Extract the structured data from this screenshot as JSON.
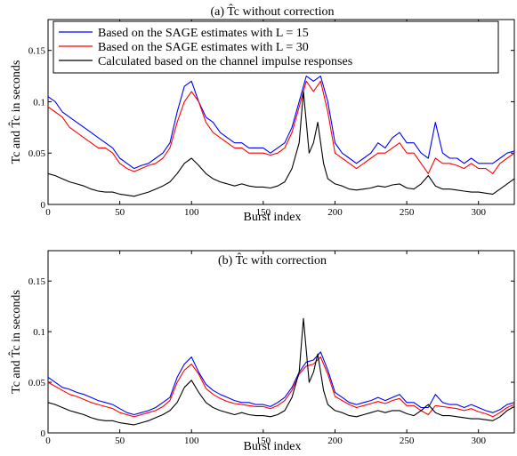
{
  "chart_data": [
    {
      "type": "line",
      "title": "(a) T̂c without correction",
      "xlabel": "Burst index",
      "ylabel": "Tc and T̂c in seconds",
      "xlim": [
        0,
        325
      ],
      "ylim": [
        0,
        0.18
      ],
      "xticks": [
        0,
        50,
        100,
        150,
        200,
        250,
        300
      ],
      "xtick_labels": [
        "0",
        "50",
        "100",
        "150",
        "200",
        "250",
        "300"
      ],
      "yticks": [
        0,
        0.05,
        0.1,
        0.15
      ],
      "ytick_labels": [
        "0",
        "0.05",
        "0.1",
        "0.15"
      ],
      "legend_position": "top-left",
      "series": [
        {
          "name": "Based on the SAGE estimates with L = 15",
          "color": "#0000ff",
          "x": [
            0,
            5,
            10,
            15,
            20,
            25,
            30,
            35,
            40,
            45,
            50,
            55,
            60,
            65,
            70,
            75,
            80,
            85,
            90,
            95,
            100,
            105,
            110,
            115,
            120,
            125,
            130,
            135,
            140,
            145,
            150,
            155,
            160,
            165,
            170,
            175,
            180,
            185,
            190,
            195,
            200,
            205,
            210,
            215,
            220,
            225,
            230,
            235,
            240,
            245,
            250,
            255,
            260,
            265,
            270,
            275,
            280,
            285,
            290,
            295,
            300,
            305,
            310,
            315,
            320,
            325
          ],
          "values": [
            0.105,
            0.1,
            0.09,
            0.085,
            0.08,
            0.075,
            0.07,
            0.065,
            0.06,
            0.055,
            0.045,
            0.04,
            0.035,
            0.038,
            0.04,
            0.045,
            0.05,
            0.06,
            0.09,
            0.115,
            0.12,
            0.1,
            0.085,
            0.08,
            0.07,
            0.065,
            0.06,
            0.06,
            0.055,
            0.055,
            0.055,
            0.05,
            0.055,
            0.06,
            0.075,
            0.1,
            0.125,
            0.12,
            0.125,
            0.1,
            0.06,
            0.05,
            0.045,
            0.04,
            0.045,
            0.05,
            0.06,
            0.055,
            0.065,
            0.07,
            0.06,
            0.06,
            0.05,
            0.045,
            0.08,
            0.05,
            0.045,
            0.045,
            0.04,
            0.045,
            0.04,
            0.04,
            0.04,
            0.045,
            0.05,
            0.052
          ]
        },
        {
          "name": "Based on the SAGE estimates with L = 30",
          "color": "#ff0000",
          "x": [
            0,
            5,
            10,
            15,
            20,
            25,
            30,
            35,
            40,
            45,
            50,
            55,
            60,
            65,
            70,
            75,
            80,
            85,
            90,
            95,
            100,
            105,
            110,
            115,
            120,
            125,
            130,
            135,
            140,
            145,
            150,
            155,
            160,
            165,
            170,
            175,
            180,
            185,
            190,
            195,
            200,
            205,
            210,
            215,
            220,
            225,
            230,
            235,
            240,
            245,
            250,
            255,
            260,
            265,
            270,
            275,
            280,
            285,
            290,
            295,
            300,
            305,
            310,
            315,
            320,
            325
          ],
          "values": [
            0.095,
            0.09,
            0.085,
            0.075,
            0.07,
            0.065,
            0.06,
            0.055,
            0.055,
            0.05,
            0.04,
            0.035,
            0.032,
            0.035,
            0.038,
            0.04,
            0.045,
            0.055,
            0.08,
            0.1,
            0.11,
            0.1,
            0.08,
            0.07,
            0.065,
            0.06,
            0.055,
            0.055,
            0.05,
            0.05,
            0.05,
            0.048,
            0.05,
            0.055,
            0.07,
            0.095,
            0.12,
            0.11,
            0.12,
            0.09,
            0.05,
            0.045,
            0.04,
            0.035,
            0.04,
            0.045,
            0.05,
            0.05,
            0.055,
            0.06,
            0.05,
            0.05,
            0.04,
            0.03,
            0.045,
            0.04,
            0.04,
            0.038,
            0.035,
            0.04,
            0.035,
            0.035,
            0.03,
            0.04,
            0.045,
            0.05
          ]
        },
        {
          "name": "Calculated based on the channel impulse responses",
          "color": "#000000",
          "x": [
            0,
            5,
            10,
            15,
            20,
            25,
            30,
            35,
            40,
            45,
            50,
            55,
            60,
            65,
            70,
            75,
            80,
            85,
            90,
            95,
            100,
            105,
            110,
            115,
            120,
            125,
            130,
            135,
            140,
            145,
            150,
            155,
            160,
            165,
            170,
            175,
            178,
            182,
            185,
            188,
            192,
            195,
            200,
            205,
            210,
            215,
            220,
            225,
            230,
            235,
            240,
            245,
            250,
            255,
            260,
            265,
            270,
            275,
            280,
            285,
            290,
            295,
            300,
            305,
            310,
            315,
            320,
            325
          ],
          "values": [
            0.03,
            0.028,
            0.025,
            0.022,
            0.02,
            0.018,
            0.015,
            0.013,
            0.012,
            0.012,
            0.01,
            0.009,
            0.008,
            0.01,
            0.012,
            0.015,
            0.018,
            0.022,
            0.03,
            0.04,
            0.045,
            0.038,
            0.03,
            0.025,
            0.022,
            0.02,
            0.018,
            0.02,
            0.018,
            0.017,
            0.017,
            0.016,
            0.018,
            0.022,
            0.035,
            0.06,
            0.11,
            0.05,
            0.06,
            0.08,
            0.04,
            0.025,
            0.02,
            0.018,
            0.015,
            0.014,
            0.015,
            0.016,
            0.018,
            0.017,
            0.019,
            0.02,
            0.016,
            0.015,
            0.02,
            0.028,
            0.018,
            0.015,
            0.015,
            0.014,
            0.013,
            0.012,
            0.012,
            0.011,
            0.01,
            0.015,
            0.02,
            0.025
          ]
        }
      ]
    },
    {
      "type": "line",
      "title": "(b) T̂c with correction",
      "xlabel": "Burst index",
      "ylabel": "Tc and T̂c in seconds",
      "xlim": [
        0,
        325
      ],
      "ylim": [
        0,
        0.18
      ],
      "xticks": [
        0,
        50,
        100,
        150,
        200,
        250,
        300
      ],
      "xtick_labels": [
        "0",
        "50",
        "100",
        "150",
        "200",
        "250",
        "300"
      ],
      "yticks": [
        0,
        0.05,
        0.1,
        0.15
      ],
      "ytick_labels": [
        "0",
        "0.05",
        "0.1",
        "0.15"
      ],
      "series": [
        {
          "color": "#0000ff",
          "x": [
            0,
            5,
            10,
            15,
            20,
            25,
            30,
            35,
            40,
            45,
            50,
            55,
            60,
            65,
            70,
            75,
            80,
            85,
            90,
            95,
            100,
            105,
            110,
            115,
            120,
            125,
            130,
            135,
            140,
            145,
            150,
            155,
            160,
            165,
            170,
            175,
            180,
            185,
            190,
            195,
            200,
            205,
            210,
            215,
            220,
            225,
            230,
            235,
            240,
            245,
            250,
            255,
            260,
            265,
            270,
            275,
            280,
            285,
            290,
            295,
            300,
            305,
            310,
            315,
            320,
            325
          ],
          "values": [
            0.055,
            0.05,
            0.045,
            0.043,
            0.04,
            0.038,
            0.035,
            0.032,
            0.03,
            0.028,
            0.024,
            0.02,
            0.018,
            0.02,
            0.022,
            0.025,
            0.03,
            0.035,
            0.055,
            0.068,
            0.075,
            0.06,
            0.048,
            0.042,
            0.038,
            0.035,
            0.032,
            0.03,
            0.03,
            0.028,
            0.028,
            0.026,
            0.03,
            0.035,
            0.045,
            0.06,
            0.07,
            0.072,
            0.08,
            0.062,
            0.04,
            0.035,
            0.03,
            0.028,
            0.03,
            0.032,
            0.035,
            0.032,
            0.035,
            0.038,
            0.03,
            0.03,
            0.025,
            0.025,
            0.038,
            0.03,
            0.028,
            0.028,
            0.025,
            0.028,
            0.025,
            0.022,
            0.02,
            0.023,
            0.028,
            0.03
          ]
        },
        {
          "color": "#ff0000",
          "x": [
            0,
            5,
            10,
            15,
            20,
            25,
            30,
            35,
            40,
            45,
            50,
            55,
            60,
            65,
            70,
            75,
            80,
            85,
            90,
            95,
            100,
            105,
            110,
            115,
            120,
            125,
            130,
            135,
            140,
            145,
            150,
            155,
            160,
            165,
            170,
            175,
            180,
            185,
            190,
            195,
            200,
            205,
            210,
            215,
            220,
            225,
            230,
            235,
            240,
            245,
            250,
            255,
            260,
            265,
            270,
            275,
            280,
            285,
            290,
            295,
            300,
            305,
            310,
            315,
            320,
            325
          ],
          "values": [
            0.05,
            0.046,
            0.042,
            0.038,
            0.036,
            0.033,
            0.03,
            0.028,
            0.026,
            0.024,
            0.02,
            0.018,
            0.016,
            0.018,
            0.02,
            0.022,
            0.026,
            0.032,
            0.05,
            0.062,
            0.068,
            0.058,
            0.044,
            0.038,
            0.034,
            0.031,
            0.029,
            0.028,
            0.027,
            0.026,
            0.026,
            0.024,
            0.027,
            0.032,
            0.042,
            0.058,
            0.066,
            0.068,
            0.075,
            0.058,
            0.036,
            0.032,
            0.028,
            0.025,
            0.027,
            0.029,
            0.031,
            0.029,
            0.032,
            0.034,
            0.027,
            0.027,
            0.022,
            0.018,
            0.027,
            0.026,
            0.025,
            0.024,
            0.022,
            0.024,
            0.021,
            0.019,
            0.016,
            0.02,
            0.025,
            0.028
          ]
        },
        {
          "color": "#000000",
          "x": [
            0,
            5,
            10,
            15,
            20,
            25,
            30,
            35,
            40,
            45,
            50,
            55,
            60,
            65,
            70,
            75,
            80,
            85,
            90,
            95,
            100,
            105,
            110,
            115,
            120,
            125,
            130,
            135,
            140,
            145,
            150,
            155,
            160,
            165,
            170,
            175,
            178,
            182,
            185,
            188,
            192,
            195,
            200,
            205,
            210,
            215,
            220,
            225,
            230,
            235,
            240,
            245,
            250,
            255,
            260,
            265,
            270,
            275,
            280,
            285,
            290,
            295,
            300,
            305,
            310,
            315,
            320,
            325
          ],
          "values": [
            0.03,
            0.028,
            0.025,
            0.022,
            0.02,
            0.018,
            0.015,
            0.013,
            0.012,
            0.012,
            0.01,
            0.009,
            0.008,
            0.01,
            0.012,
            0.015,
            0.018,
            0.022,
            0.03,
            0.045,
            0.052,
            0.04,
            0.03,
            0.025,
            0.022,
            0.02,
            0.018,
            0.02,
            0.018,
            0.017,
            0.017,
            0.016,
            0.018,
            0.022,
            0.035,
            0.06,
            0.113,
            0.05,
            0.06,
            0.078,
            0.042,
            0.028,
            0.022,
            0.02,
            0.017,
            0.016,
            0.018,
            0.02,
            0.022,
            0.02,
            0.022,
            0.022,
            0.019,
            0.017,
            0.022,
            0.028,
            0.02,
            0.017,
            0.017,
            0.016,
            0.015,
            0.014,
            0.014,
            0.013,
            0.012,
            0.016,
            0.022,
            0.026
          ]
        }
      ]
    }
  ]
}
